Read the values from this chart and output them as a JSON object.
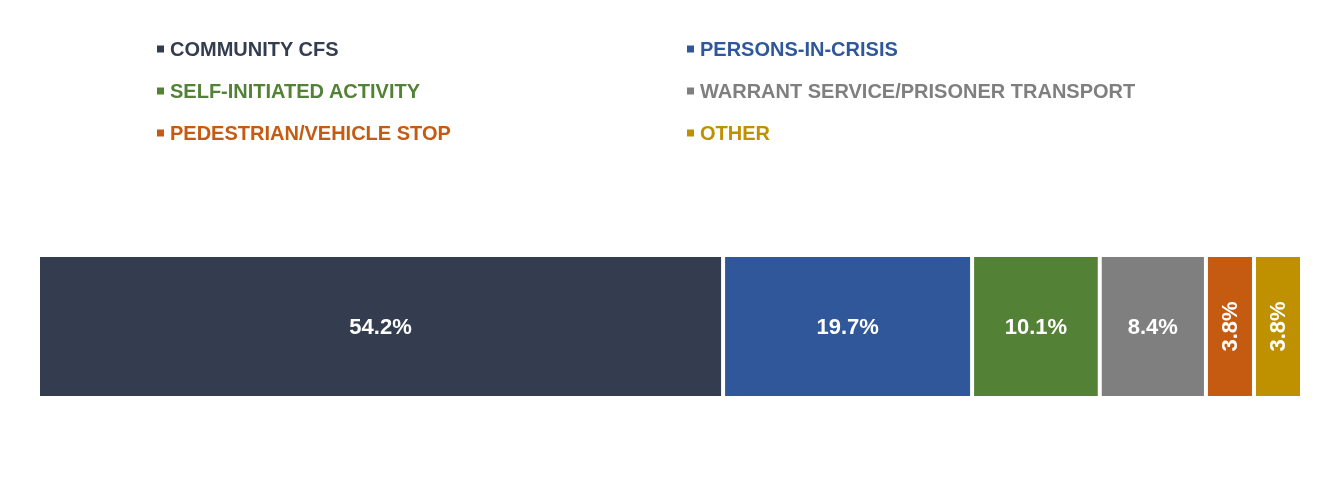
{
  "chart_data": {
    "type": "bar",
    "orientation": "horizontal",
    "stacked": true,
    "categories": [
      null
    ],
    "series": [
      {
        "name": "COMMUNITY CFS",
        "color": "#333d4f",
        "values": [
          54.2
        ],
        "value_labels": [
          "54.2%"
        ]
      },
      {
        "name": "PERSONS-IN-CRISIS",
        "color": "#30579a",
        "values": [
          19.7
        ],
        "value_labels": [
          "19.7%"
        ]
      },
      {
        "name": "SELF-INITIATED ACTIVITY",
        "color": "#538135",
        "values": [
          10.1
        ],
        "value_labels": [
          "10.1%"
        ]
      },
      {
        "name": "WARRANT SERVICE/PRISONER TRANSPORT",
        "color": "#7f7f7f",
        "values": [
          8.4
        ],
        "value_labels": [
          "8.4%"
        ]
      },
      {
        "name": "PEDESTRIAN/VEHICLE STOP",
        "color": "#c55a11",
        "values": [
          3.8
        ],
        "value_labels": [
          "3.8%"
        ]
      },
      {
        "name": "OTHER",
        "color": "#bf9000",
        "values": [
          3.8
        ],
        "value_labels": [
          "3.8%"
        ]
      }
    ],
    "legend": "top",
    "tick_labels": false
  }
}
